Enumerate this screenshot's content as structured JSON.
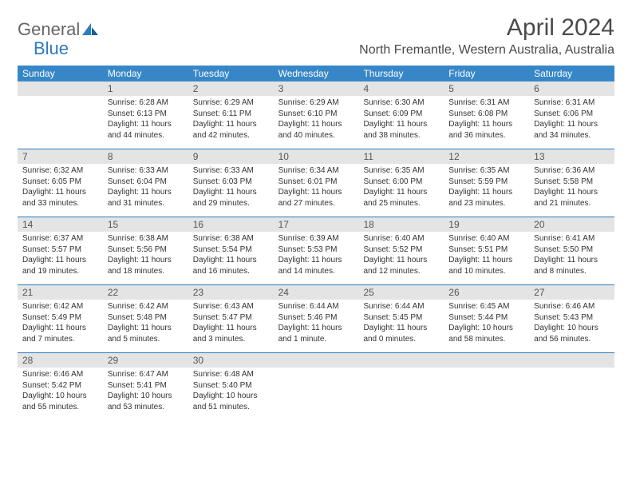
{
  "logo": {
    "text1": "General",
    "text2": "Blue"
  },
  "title": "April 2024",
  "location": "North Fremantle, Western Australia, Australia",
  "colors": {
    "header_bg": "#3787c8",
    "header_text": "#ffffff",
    "daynum_bg": "#e4e4e4",
    "border": "#2d7bc0",
    "text": "#333333"
  },
  "weekdays": [
    "Sunday",
    "Monday",
    "Tuesday",
    "Wednesday",
    "Thursday",
    "Friday",
    "Saturday"
  ],
  "weeks": [
    [
      null,
      {
        "n": "1",
        "sunrise": "6:28 AM",
        "sunset": "6:13 PM",
        "daylight": "11 hours and 44 minutes."
      },
      {
        "n": "2",
        "sunrise": "6:29 AM",
        "sunset": "6:11 PM",
        "daylight": "11 hours and 42 minutes."
      },
      {
        "n": "3",
        "sunrise": "6:29 AM",
        "sunset": "6:10 PM",
        "daylight": "11 hours and 40 minutes."
      },
      {
        "n": "4",
        "sunrise": "6:30 AM",
        "sunset": "6:09 PM",
        "daylight": "11 hours and 38 minutes."
      },
      {
        "n": "5",
        "sunrise": "6:31 AM",
        "sunset": "6:08 PM",
        "daylight": "11 hours and 36 minutes."
      },
      {
        "n": "6",
        "sunrise": "6:31 AM",
        "sunset": "6:06 PM",
        "daylight": "11 hours and 34 minutes."
      }
    ],
    [
      {
        "n": "7",
        "sunrise": "6:32 AM",
        "sunset": "6:05 PM",
        "daylight": "11 hours and 33 minutes."
      },
      {
        "n": "8",
        "sunrise": "6:33 AM",
        "sunset": "6:04 PM",
        "daylight": "11 hours and 31 minutes."
      },
      {
        "n": "9",
        "sunrise": "6:33 AM",
        "sunset": "6:03 PM",
        "daylight": "11 hours and 29 minutes."
      },
      {
        "n": "10",
        "sunrise": "6:34 AM",
        "sunset": "6:01 PM",
        "daylight": "11 hours and 27 minutes."
      },
      {
        "n": "11",
        "sunrise": "6:35 AM",
        "sunset": "6:00 PM",
        "daylight": "11 hours and 25 minutes."
      },
      {
        "n": "12",
        "sunrise": "6:35 AM",
        "sunset": "5:59 PM",
        "daylight": "11 hours and 23 minutes."
      },
      {
        "n": "13",
        "sunrise": "6:36 AM",
        "sunset": "5:58 PM",
        "daylight": "11 hours and 21 minutes."
      }
    ],
    [
      {
        "n": "14",
        "sunrise": "6:37 AM",
        "sunset": "5:57 PM",
        "daylight": "11 hours and 19 minutes."
      },
      {
        "n": "15",
        "sunrise": "6:38 AM",
        "sunset": "5:56 PM",
        "daylight": "11 hours and 18 minutes."
      },
      {
        "n": "16",
        "sunrise": "6:38 AM",
        "sunset": "5:54 PM",
        "daylight": "11 hours and 16 minutes."
      },
      {
        "n": "17",
        "sunrise": "6:39 AM",
        "sunset": "5:53 PM",
        "daylight": "11 hours and 14 minutes."
      },
      {
        "n": "18",
        "sunrise": "6:40 AM",
        "sunset": "5:52 PM",
        "daylight": "11 hours and 12 minutes."
      },
      {
        "n": "19",
        "sunrise": "6:40 AM",
        "sunset": "5:51 PM",
        "daylight": "11 hours and 10 minutes."
      },
      {
        "n": "20",
        "sunrise": "6:41 AM",
        "sunset": "5:50 PM",
        "daylight": "11 hours and 8 minutes."
      }
    ],
    [
      {
        "n": "21",
        "sunrise": "6:42 AM",
        "sunset": "5:49 PM",
        "daylight": "11 hours and 7 minutes."
      },
      {
        "n": "22",
        "sunrise": "6:42 AM",
        "sunset": "5:48 PM",
        "daylight": "11 hours and 5 minutes."
      },
      {
        "n": "23",
        "sunrise": "6:43 AM",
        "sunset": "5:47 PM",
        "daylight": "11 hours and 3 minutes."
      },
      {
        "n": "24",
        "sunrise": "6:44 AM",
        "sunset": "5:46 PM",
        "daylight": "11 hours and 1 minute."
      },
      {
        "n": "25",
        "sunrise": "6:44 AM",
        "sunset": "5:45 PM",
        "daylight": "11 hours and 0 minutes."
      },
      {
        "n": "26",
        "sunrise": "6:45 AM",
        "sunset": "5:44 PM",
        "daylight": "10 hours and 58 minutes."
      },
      {
        "n": "27",
        "sunrise": "6:46 AM",
        "sunset": "5:43 PM",
        "daylight": "10 hours and 56 minutes."
      }
    ],
    [
      {
        "n": "28",
        "sunrise": "6:46 AM",
        "sunset": "5:42 PM",
        "daylight": "10 hours and 55 minutes."
      },
      {
        "n": "29",
        "sunrise": "6:47 AM",
        "sunset": "5:41 PM",
        "daylight": "10 hours and 53 minutes."
      },
      {
        "n": "30",
        "sunrise": "6:48 AM",
        "sunset": "5:40 PM",
        "daylight": "10 hours and 51 minutes."
      },
      null,
      null,
      null,
      null
    ]
  ],
  "labels": {
    "sunrise": "Sunrise:",
    "sunset": "Sunset:",
    "daylight": "Daylight:"
  }
}
